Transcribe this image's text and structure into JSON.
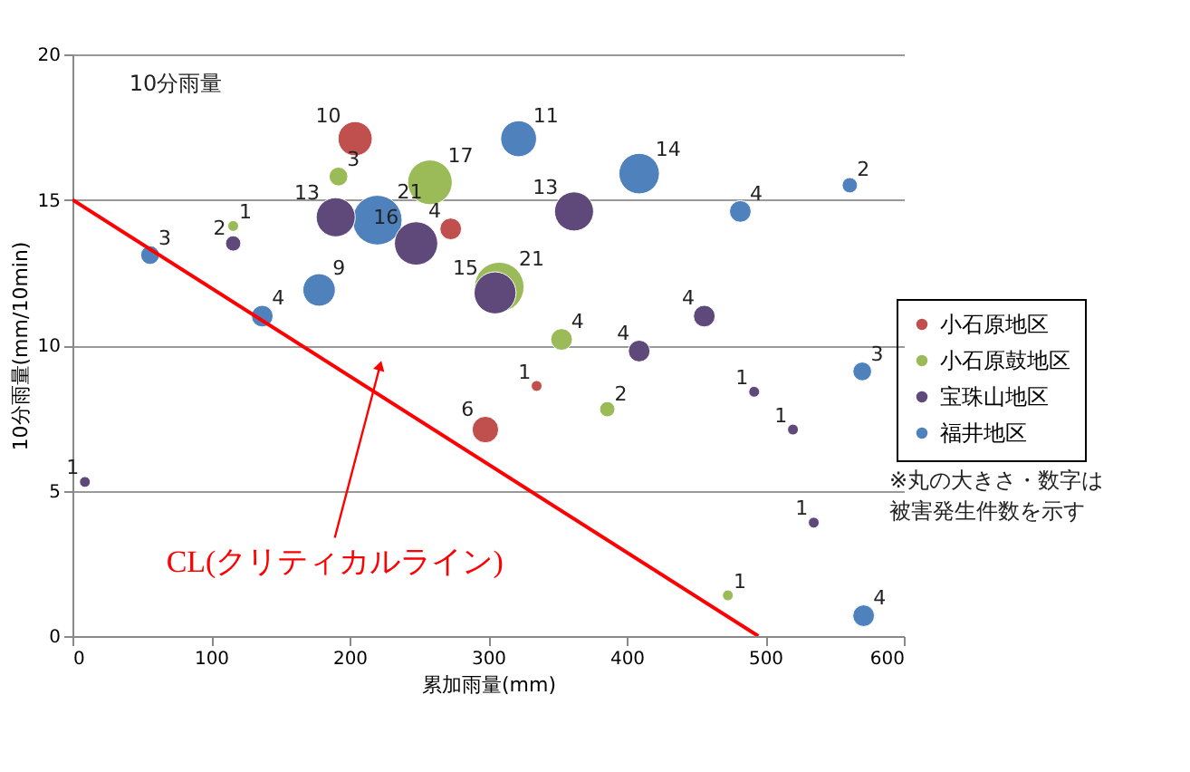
{
  "chart_data": {
    "type": "bubble",
    "title": "10分雨量",
    "xlabel": "累加雨量(mm)",
    "ylabel": "10分雨量(mm/10min)",
    "xlim": [
      0,
      600
    ],
    "xticks": [
      0,
      100,
      200,
      300,
      400,
      500,
      600
    ],
    "ylim": [
      0,
      20
    ],
    "yticks": [
      0,
      5,
      10,
      15,
      20
    ],
    "grid": "y",
    "legend": "right",
    "series": [
      {
        "name": "小石原地区",
        "color": "#c0504d",
        "x": [
          204,
          273,
          298,
          335
        ],
        "values": [
          17.1,
          14.0,
          7.1,
          8.6
        ],
        "sizes": [
          10,
          4,
          6,
          1
        ],
        "value_labels": [
          "10",
          "4",
          "6",
          "1"
        ]
      },
      {
        "name": "小石原鼓地区",
        "color": "#9bbb59",
        "x": [
          192,
          116,
          258,
          308,
          353,
          386,
          473
        ],
        "values": [
          15.8,
          14.1,
          15.6,
          12.0,
          10.2,
          7.8,
          1.4
        ],
        "sizes": [
          3,
          1,
          17,
          21,
          4,
          2,
          1
        ],
        "value_labels": [
          "3",
          "1",
          "17",
          "21",
          "4",
          "2",
          "1"
        ]
      },
      {
        "name": "宝珠山地区",
        "color": "#5f497a",
        "x": [
          9,
          116,
          190,
          248,
          305,
          362,
          409,
          456,
          492,
          520,
          535
        ],
        "values": [
          5.3,
          13.5,
          14.4,
          13.5,
          11.8,
          14.6,
          9.8,
          11.0,
          8.4,
          7.1,
          3.9
        ],
        "sizes": [
          1,
          2,
          13,
          16,
          15,
          13,
          4,
          4,
          1,
          1,
          1
        ],
        "value_labels": [
          "1",
          "2",
          "13",
          "16",
          "15",
          "13",
          "4",
          "4",
          "1",
          "1",
          "1"
        ]
      },
      {
        "name": "福井地区",
        "color": "#4f81bd",
        "x": [
          56,
          137,
          178,
          220,
          322,
          409,
          482,
          561,
          570,
          571
        ],
        "values": [
          13.1,
          11.0,
          11.9,
          14.3,
          17.1,
          15.9,
          14.6,
          15.5,
          9.1,
          0.7
        ],
        "sizes": [
          3,
          4,
          9,
          21,
          11,
          14,
          4,
          2,
          3,
          4
        ],
        "value_labels": [
          "3",
          "4",
          "9",
          "21",
          "11",
          "14",
          "4",
          "2",
          "3",
          "4"
        ]
      },
      {
        "type": "line",
        "color": "#ff0000",
        "x": [
          0,
          495
        ],
        "values": [
          15,
          0
        ]
      }
    ],
    "annotations": [
      {
        "text": "CL(クリティカルライン)",
        "x": 222,
        "y": 9.3
      },
      "※丸の大きさ・数字は被害発生件数を示す"
    ]
  }
}
